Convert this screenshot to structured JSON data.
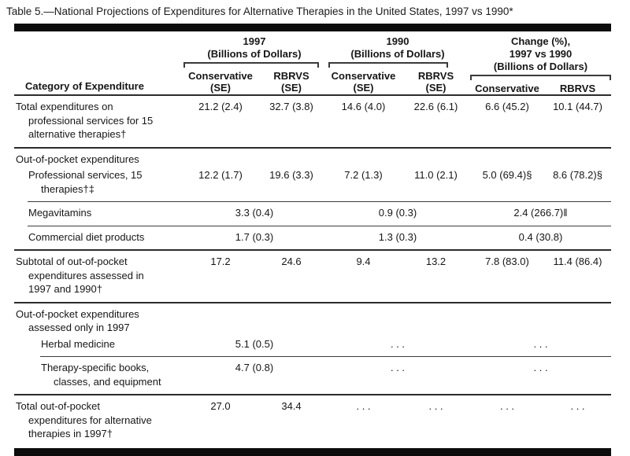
{
  "title": "Table 5.—National Projections of Expenditures for Alternative Therapies in the United States, 1997 vs 1990*",
  "header": {
    "category": "Category of Expenditure",
    "groups": [
      {
        "title": [
          "1997",
          "(Billions of Dollars)"
        ],
        "subs": [
          [
            "Conservative",
            "(SE)"
          ],
          [
            "RBRVS",
            "(SE)"
          ]
        ]
      },
      {
        "title": [
          "1990",
          "(Billions of Dollars)"
        ],
        "subs": [
          [
            "Conservative",
            "(SE)"
          ],
          [
            "RBRVS",
            "(SE)"
          ]
        ]
      },
      {
        "title": [
          "Change (%),",
          "1997 vs 1990",
          "(Billions of Dollars)"
        ],
        "subs": [
          [
            "Conservative"
          ],
          [
            "RBRVS"
          ]
        ]
      }
    ]
  },
  "rows": [
    {
      "label_lines": [
        "Total expenditures on",
        "professional services for 15",
        "alternative therapies†"
      ],
      "cells": [
        "21.2 (2.4)",
        "32.7 (3.8)",
        "14.6 (4.0)",
        "22.6 (6.1)",
        "6.6 (45.2)",
        "10.1 (44.7)"
      ]
    },
    {
      "label_lines": [
        "Out-of-pocket expenditures"
      ]
    },
    {
      "label_lines": [
        "Professional services, 15",
        "therapies†‡"
      ],
      "cells": [
        "12.2 (1.7)",
        "19.6 (3.3)",
        "7.2 (1.3)",
        "11.0 (2.1)",
        "5.0 (69.4)§",
        "8.6 (78.2)§"
      ]
    },
    {
      "label_lines": [
        "Megavitamins"
      ],
      "span_cells": [
        "3.3 (0.4)",
        "0.9 (0.3)",
        "2.4 (266.7)‖"
      ]
    },
    {
      "label_lines": [
        "Commercial diet products"
      ],
      "span_cells": [
        "1.7 (0.3)",
        "1.3 (0.3)",
        "0.4 (30.8)"
      ]
    },
    {
      "label_lines": [
        "Subtotal of out-of-pocket",
        "expenditures assessed in",
        "1997 and 1990†"
      ],
      "cells": [
        "17.2",
        "24.6",
        "9.4",
        "13.2",
        "7.8 (83.0)",
        "11.4 (86.4)"
      ]
    },
    {
      "label_lines": [
        "Out-of-pocket expenditures",
        "assessed only in 1997"
      ]
    },
    {
      "label_lines": [
        "Herbal medicine"
      ],
      "span_cells": [
        "5.1 (0.5)",
        ". . .",
        ". . ."
      ]
    },
    {
      "label_lines": [
        "Therapy-specific books,",
        "classes, and equipment"
      ],
      "span_cells": [
        "4.7 (0.8)",
        ". . .",
        ". . ."
      ]
    },
    {
      "label_lines": [
        "Total out-of-pocket",
        "expenditures for alternative",
        "therapies in 1997†"
      ],
      "cells": [
        "27.0",
        "34.4",
        ". . .",
        ". . .",
        ". . .",
        ". . ."
      ]
    }
  ]
}
